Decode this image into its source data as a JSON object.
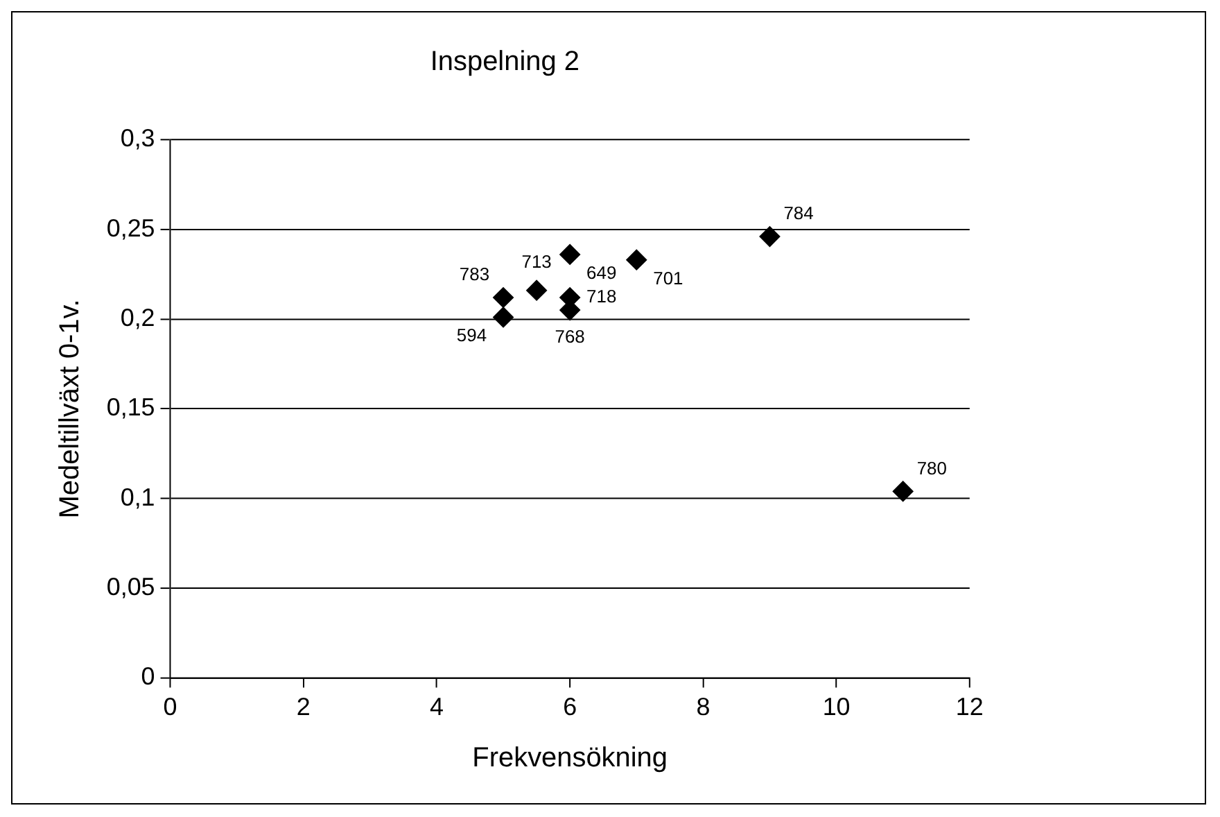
{
  "chart_data": {
    "type": "scatter",
    "title": "Inspelning 2",
    "xlabel": "Frekvensökning",
    "ylabel": "Medeltillväxt 0-1v.",
    "x": [
      5,
      5,
      5.5,
      6,
      6,
      6,
      7,
      9,
      11
    ],
    "values": [
      0.212,
      0.201,
      0.216,
      0.236,
      0.212,
      0.205,
      0.233,
      0.246,
      0.104
    ],
    "color": "#000000",
    "marker": "diamond",
    "grid": "y",
    "legend": false,
    "xlim": [
      0,
      12
    ],
    "xticks": [
      0,
      2,
      4,
      6,
      8,
      10,
      12
    ],
    "ylim": [
      0,
      0.3
    ],
    "yticks": [
      {
        "value": 0,
        "label": "0"
      },
      {
        "value": 0.05,
        "label": "0,05"
      },
      {
        "value": 0.1,
        "label": "0,1"
      },
      {
        "value": 0.15,
        "label": "0,15"
      },
      {
        "value": 0.2,
        "label": "0,2"
      },
      {
        "value": 0.25,
        "label": "0,25"
      },
      {
        "value": 0.3,
        "label": "0,3"
      }
    ],
    "annotations": [
      {
        "text": "783",
        "x": 5,
        "y": 0.212
      },
      {
        "text": "594",
        "x": 5,
        "y": 0.201
      },
      {
        "text": "713",
        "x": 5.5,
        "y": 0.216
      },
      {
        "text": "649",
        "x": 6,
        "y": 0.236
      },
      {
        "text": "718",
        "x": 6,
        "y": 0.212
      },
      {
        "text": "768",
        "x": 6,
        "y": 0.205
      },
      {
        "text": "701",
        "x": 7,
        "y": 0.233
      },
      {
        "text": "784",
        "x": 9,
        "y": 0.246
      },
      {
        "text": "780",
        "x": 11,
        "y": 0.104
      }
    ]
  }
}
